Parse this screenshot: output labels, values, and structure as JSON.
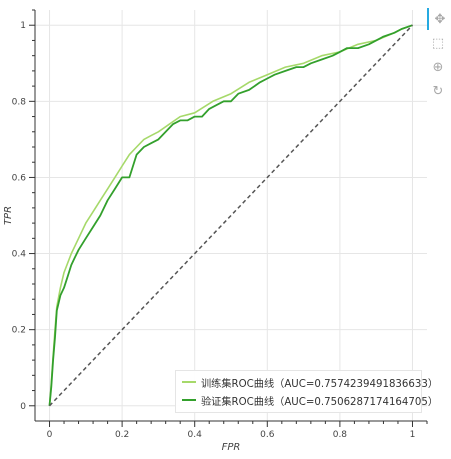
{
  "chart_data": {
    "type": "line",
    "title": "",
    "xlabel": "FPR",
    "ylabel": "TPR",
    "xlim": [
      -0.04,
      1.04
    ],
    "ylim": [
      -0.04,
      1.04
    ],
    "x_ticks": [
      "0",
      "0.2",
      "0.4",
      "0.6",
      "0.8",
      "1"
    ],
    "y_ticks": [
      "0",
      "0.2",
      "0.4",
      "0.6",
      "0.8",
      "1"
    ],
    "grid": true,
    "legend_position": "bottom-right",
    "series": [
      {
        "name": "训练集ROC曲线（AUC=0.7574239491836633）",
        "color": "#a6d96a",
        "x": [
          0,
          0.005,
          0.01,
          0.015,
          0.02,
          0.03,
          0.04,
          0.06,
          0.08,
          0.1,
          0.12,
          0.14,
          0.16,
          0.18,
          0.2,
          0.22,
          0.24,
          0.26,
          0.28,
          0.3,
          0.33,
          0.36,
          0.4,
          0.45,
          0.5,
          0.55,
          0.6,
          0.65,
          0.7,
          0.75,
          0.8,
          0.85,
          0.9,
          0.95,
          0.97,
          1.0
        ],
        "y": [
          0,
          0.06,
          0.13,
          0.2,
          0.26,
          0.31,
          0.35,
          0.4,
          0.44,
          0.48,
          0.51,
          0.54,
          0.57,
          0.6,
          0.63,
          0.66,
          0.68,
          0.7,
          0.71,
          0.72,
          0.74,
          0.76,
          0.77,
          0.8,
          0.82,
          0.85,
          0.87,
          0.89,
          0.9,
          0.92,
          0.93,
          0.95,
          0.96,
          0.98,
          0.99,
          1.0
        ]
      },
      {
        "name": "验证集ROC曲线（AUC=0.7506287174164705）",
        "color": "#33a02c",
        "x": [
          0,
          0.005,
          0.01,
          0.015,
          0.02,
          0.03,
          0.04,
          0.05,
          0.06,
          0.07,
          0.08,
          0.1,
          0.12,
          0.14,
          0.16,
          0.18,
          0.2,
          0.22,
          0.24,
          0.26,
          0.28,
          0.3,
          0.32,
          0.34,
          0.36,
          0.38,
          0.4,
          0.42,
          0.44,
          0.46,
          0.48,
          0.5,
          0.52,
          0.55,
          0.58,
          0.6,
          0.62,
          0.65,
          0.68,
          0.7,
          0.72,
          0.75,
          0.78,
          0.8,
          0.82,
          0.85,
          0.88,
          0.9,
          0.92,
          0.95,
          0.97,
          1.0
        ],
        "y": [
          0,
          0.05,
          0.12,
          0.18,
          0.25,
          0.29,
          0.31,
          0.34,
          0.37,
          0.39,
          0.41,
          0.44,
          0.47,
          0.5,
          0.54,
          0.57,
          0.6,
          0.6,
          0.66,
          0.68,
          0.69,
          0.7,
          0.72,
          0.74,
          0.75,
          0.75,
          0.76,
          0.76,
          0.78,
          0.79,
          0.8,
          0.8,
          0.82,
          0.83,
          0.85,
          0.86,
          0.87,
          0.88,
          0.89,
          0.89,
          0.9,
          0.91,
          0.92,
          0.93,
          0.94,
          0.94,
          0.95,
          0.96,
          0.97,
          0.98,
          0.99,
          1.0
        ]
      },
      {
        "name": "",
        "color": "#555555",
        "dash": "4,3",
        "x": [
          0,
          1
        ],
        "y": [
          0,
          1
        ]
      }
    ]
  },
  "toolbar": {
    "pan": "✥",
    "box_zoom": "⬚",
    "wheel_zoom": "⊕",
    "reset": "↻"
  }
}
